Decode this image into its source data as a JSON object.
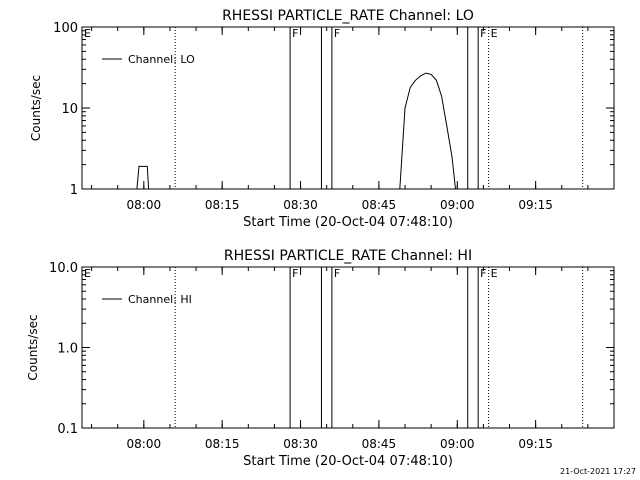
{
  "chart_data": [
    {
      "type": "line",
      "title": "RHESSI PARTICLE_RATE Channel: LO",
      "xlabel": "Start Time (20-Oct-04 07:48:10)",
      "ylabel": "Counts/sec",
      "yscale": "log",
      "ylim": [
        1,
        100
      ],
      "xlim": [
        "07:48:10",
        "09:30:00"
      ],
      "x_ticks": [
        "08:00",
        "08:15",
        "08:30",
        "08:45",
        "09:00",
        "09:15"
      ],
      "y_ticks": [
        "1",
        "10",
        "100"
      ],
      "legend": {
        "position": "top-left",
        "entries": [
          "Channel: LO"
        ]
      },
      "series": [
        {
          "name": "Channel: LO",
          "x": [
            "07:58:40",
            "07:59:05",
            "07:59:20",
            "08:00:20",
            "08:00:40",
            "08:00:55",
            "08:49:00",
            "08:50:00",
            "08:51:00",
            "08:52:00",
            "08:53:00",
            "08:54:00",
            "08:55:00",
            "08:56:00",
            "08:57:00",
            "08:58:00",
            "08:59:00",
            "08:59:40"
          ],
          "y": [
            1,
            1.9,
            1.9,
            1.9,
            1.9,
            1,
            1,
            10,
            18,
            22,
            25,
            27,
            26,
            22,
            14,
            6,
            2.5,
            1
          ]
        }
      ],
      "flags": [
        {
          "time": "07:48:10",
          "label": "E",
          "style": "none"
        },
        {
          "time": "08:06:00",
          "label": "",
          "style": "dotted"
        },
        {
          "time": "08:28:00",
          "label": "F",
          "style": "solid"
        },
        {
          "time": "08:34:00",
          "label": "",
          "style": "solid"
        },
        {
          "time": "08:36:00",
          "label": "F",
          "style": "solid"
        },
        {
          "time": "09:02:00",
          "label": "",
          "style": "solid"
        },
        {
          "time": "09:04:00",
          "label": "F",
          "style": "solid"
        },
        {
          "time": "09:06:00",
          "label": "E",
          "style": "dotted"
        },
        {
          "time": "09:24:00",
          "label": "",
          "style": "dotted"
        }
      ]
    },
    {
      "type": "line",
      "title": "RHESSI PARTICLE_RATE Channel: HI",
      "xlabel": "Start Time (20-Oct-04 07:48:10)",
      "ylabel": "Counts/sec",
      "yscale": "log",
      "ylim": [
        0.1,
        10
      ],
      "xlim": [
        "07:48:10",
        "09:30:00"
      ],
      "x_ticks": [
        "08:00",
        "08:15",
        "08:30",
        "08:45",
        "09:00",
        "09:15"
      ],
      "y_ticks": [
        "0.1",
        "1.0",
        "10.0"
      ],
      "legend": {
        "position": "top-left",
        "entries": [
          "Channel: HI"
        ]
      },
      "series": [
        {
          "name": "Channel: HI",
          "x": [],
          "y": []
        }
      ],
      "flags": [
        {
          "time": "07:48:10",
          "label": "E",
          "style": "none"
        },
        {
          "time": "08:06:00",
          "label": "",
          "style": "dotted"
        },
        {
          "time": "08:28:00",
          "label": "F",
          "style": "solid"
        },
        {
          "time": "08:34:00",
          "label": "",
          "style": "solid"
        },
        {
          "time": "08:36:00",
          "label": "F",
          "style": "solid"
        },
        {
          "time": "09:02:00",
          "label": "",
          "style": "solid"
        },
        {
          "time": "09:04:00",
          "label": "F",
          "style": "solid"
        },
        {
          "time": "09:06:00",
          "label": "E",
          "style": "dotted"
        },
        {
          "time": "09:24:00",
          "label": "",
          "style": "dotted"
        }
      ]
    }
  ],
  "footer": {
    "timestamp": "21-Oct-2021 17:27"
  }
}
